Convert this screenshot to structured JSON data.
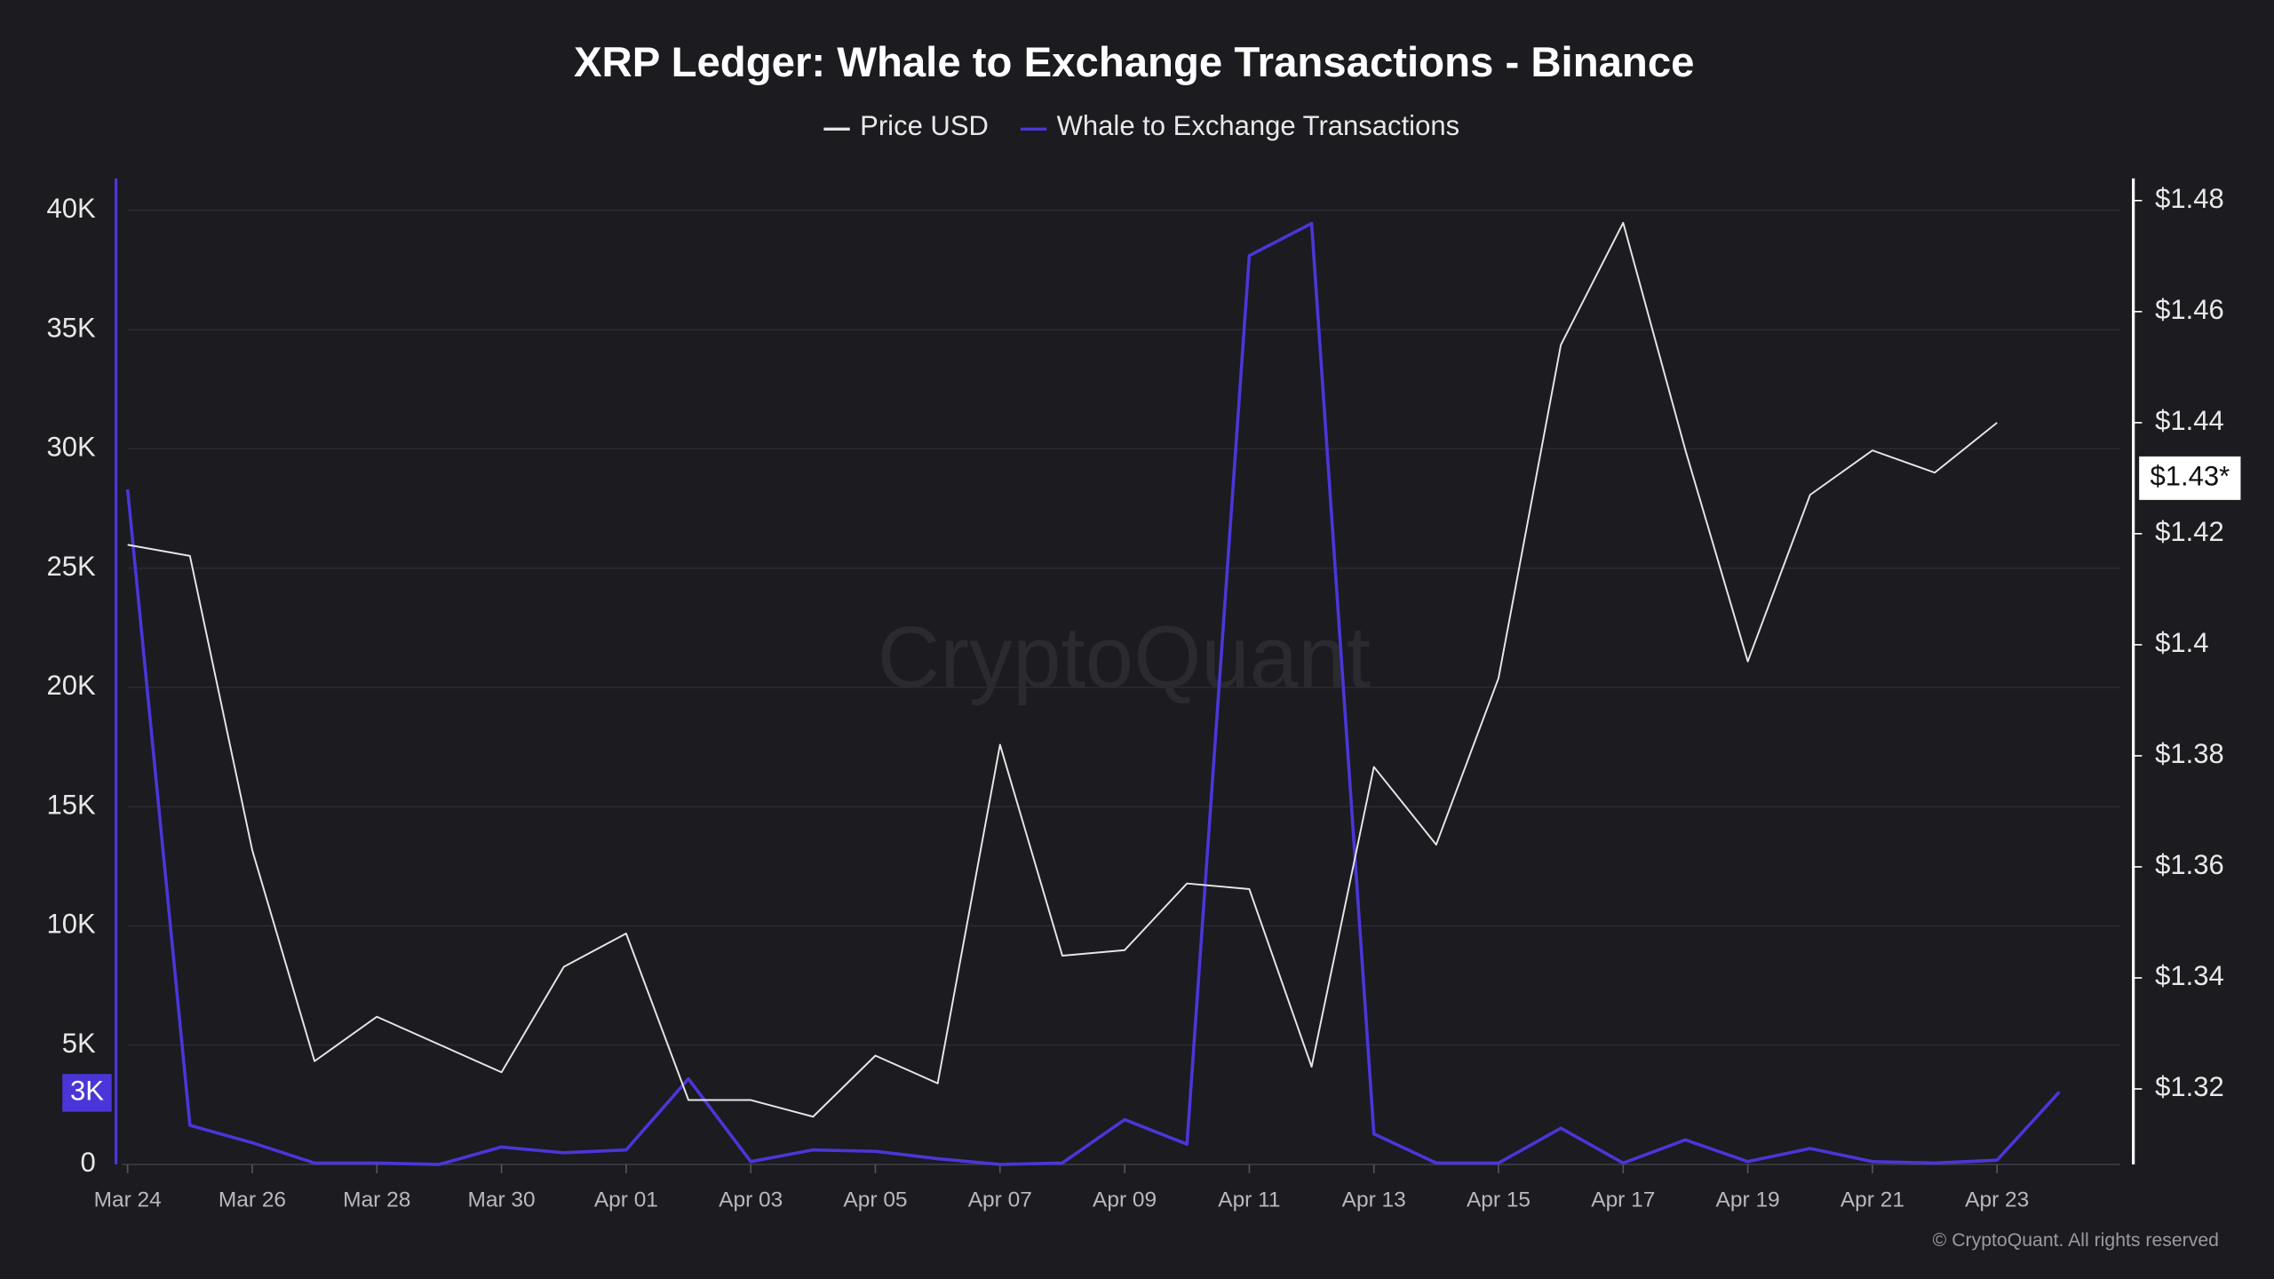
{
  "chart_data": {
    "type": "line",
    "title": "XRP Ledger: Whale to Exchange Transactions - Binance",
    "watermark": "CryptoQuant",
    "footer": "© CryptoQuant. All rights reserved",
    "categories": [
      "Mar 24",
      null,
      "Mar 26",
      null,
      "Mar 28",
      null,
      "Mar 30",
      null,
      "Apr 01",
      null,
      "Apr 03",
      null,
      "Apr 05",
      null,
      "Apr 07",
      null,
      "Apr 09",
      null,
      "Apr 11",
      null,
      "Apr 13",
      null,
      "Apr 15",
      null,
      "Apr 17",
      null,
      "Apr 19",
      null,
      "Apr 21",
      null,
      "Apr 23",
      null
    ],
    "series": [
      {
        "name": "Price USD",
        "color": "#e6e6e6",
        "axis": "y2",
        "values": [
          1.418,
          1.416,
          1.363,
          1.325,
          1.333,
          1.328,
          1.323,
          1.342,
          1.348,
          1.318,
          1.318,
          1.315,
          1.326,
          1.321,
          1.382,
          1.344,
          1.345,
          1.357,
          1.356,
          1.324,
          1.378,
          1.364,
          1.394,
          1.454,
          1.476,
          1.435,
          1.397,
          1.427,
          1.435,
          1.431,
          1.44,
          null
        ]
      },
      {
        "name": "Whale to Exchange Transactions",
        "color": "#4a36d8",
        "values": [
          28300,
          1640,
          910,
          60,
          60,
          0,
          730,
          490,
          610,
          3590,
          120,
          610,
          550,
          240,
          0,
          60,
          1880,
          850,
          38100,
          39450,
          1280,
          60,
          60,
          1520,
          60,
          1030,
          120,
          670,
          120,
          60,
          180,
          3040
        ]
      }
    ],
    "ylim": [
      0,
      41340
    ],
    "yticks": [
      0,
      {
        "value": 5000,
        "label": "5K"
      },
      {
        "value": 10000,
        "label": "10K"
      },
      {
        "value": 15000,
        "label": "15K"
      },
      {
        "value": 20000,
        "label": "20K"
      },
      {
        "value": 25000,
        "label": "25K"
      },
      {
        "value": 30000,
        "label": "30K"
      },
      {
        "value": 35000,
        "label": "35K"
      },
      {
        "value": 40000,
        "label": "40K"
      }
    ],
    "y2lim": [
      1.3064,
      1.484
    ],
    "y2ticks": [
      {
        "value": 1.32,
        "label": "$1.32"
      },
      {
        "value": 1.34,
        "label": "$1.34"
      },
      {
        "value": 1.36,
        "label": "$1.36"
      },
      {
        "value": 1.38,
        "label": "$1.38"
      },
      {
        "value": 1.4,
        "label": "$1.4"
      },
      {
        "value": 1.42,
        "label": "$1.42"
      },
      {
        "value": 1.44,
        "label": "$1.44"
      },
      {
        "value": 1.46,
        "label": "$1.46"
      },
      {
        "value": 1.48,
        "label": "$1.48"
      }
    ],
    "y_badge": {
      "value": 3000,
      "label": "3K"
    },
    "y2_badge": {
      "value": 1.43,
      "label": "$1.43*"
    },
    "grid": true,
    "legend": "top"
  }
}
